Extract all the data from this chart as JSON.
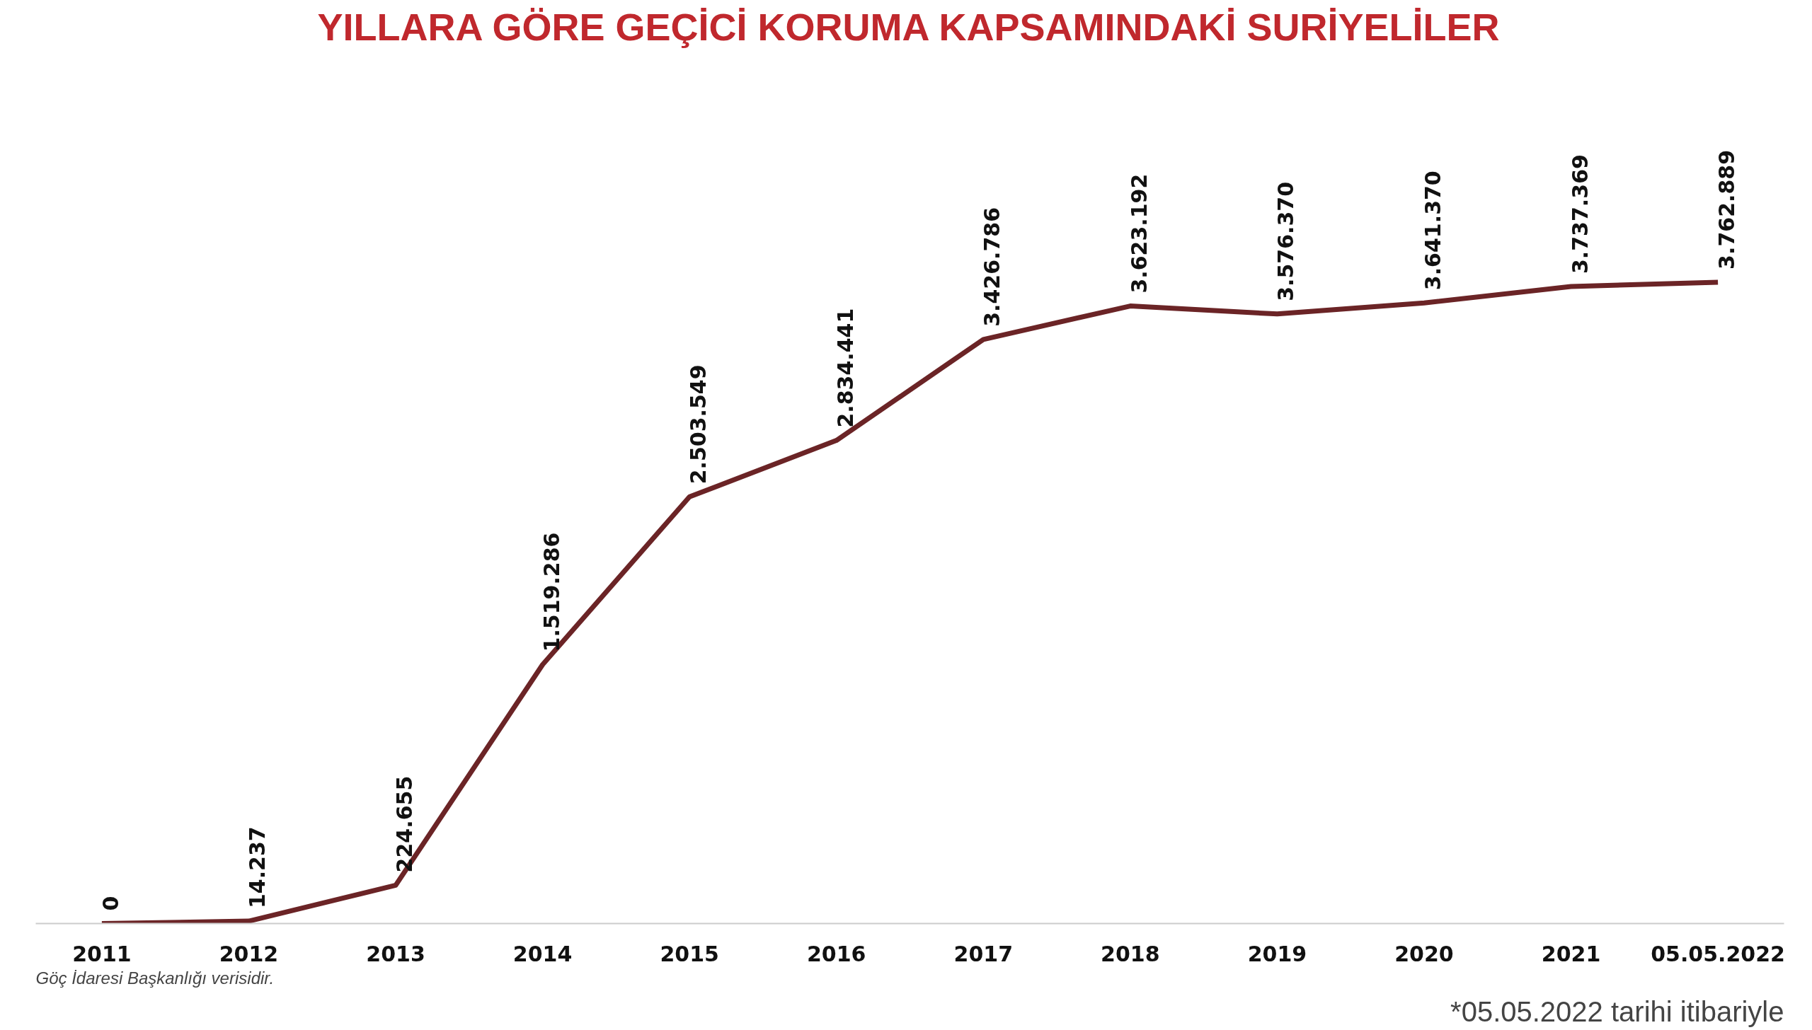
{
  "chart_data": {
    "type": "line",
    "title": "YILLARA GÖRE GEÇİCİ KORUMA KAPSAMINDAKİ SURİYELİLER",
    "categories": [
      "2011",
      "2012",
      "2013",
      "2014",
      "2015",
      "2016",
      "2017",
      "2018",
      "2019",
      "2020",
      "2021",
      "05.05.2022"
    ],
    "series": [
      {
        "color": "#6b2426",
        "values": [
          0,
          14237,
          224655,
          1519286,
          2503549,
          2834441,
          3426786,
          3623192,
          3576370,
          3641370,
          3737369,
          3762889
        ],
        "value_labels": [
          "0",
          "14.237",
          "224.655",
          "1.519.286",
          "2.503.549",
          "2.834.441",
          "3.426.786",
          "3.623.192",
          "3.576.370",
          "3.641.370",
          "3.737.369",
          "3.762.889"
        ]
      }
    ],
    "grid": false,
    "marker": "none",
    "line_style": "solid",
    "annotations": [
      "Göç İdaresi Başkanlığı verisidir.",
      "*05.05.2022 tarihi itibariyle"
    ]
  }
}
